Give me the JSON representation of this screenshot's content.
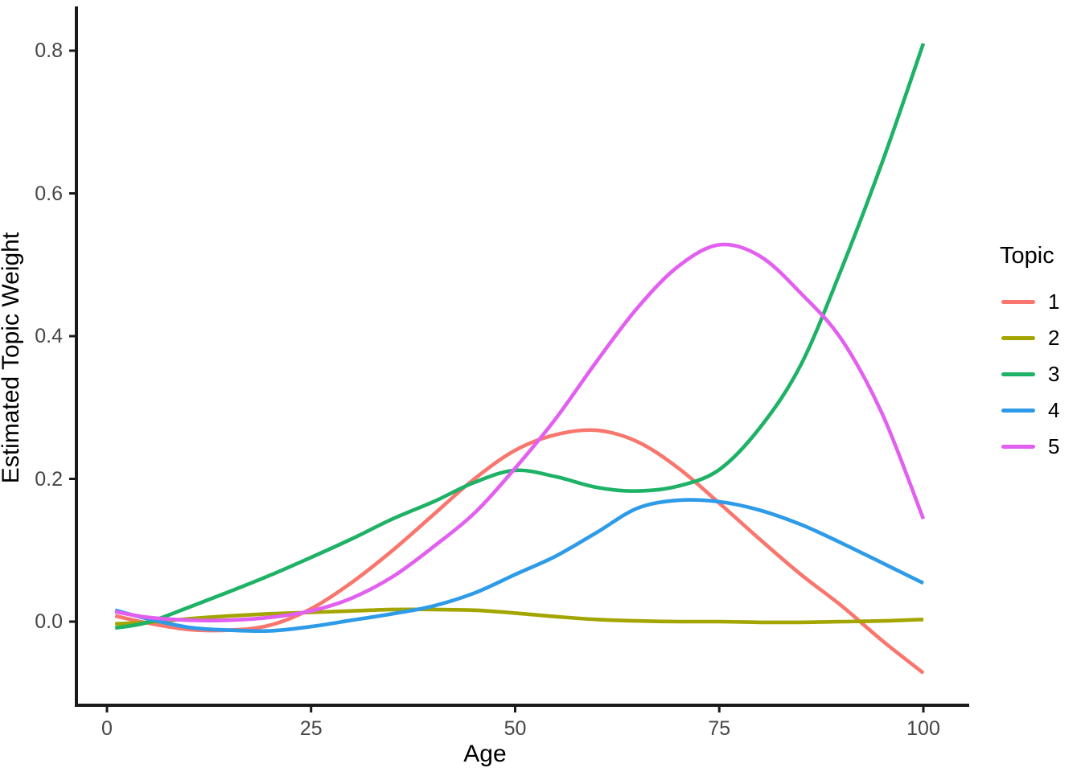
{
  "chart_data": {
    "type": "line",
    "title": "",
    "xlabel": "Age",
    "ylabel": "Estimated Topic Weight",
    "legend_title": "Topic",
    "legend_position": "right",
    "grid": false,
    "background": "#ffffff",
    "axis_color": "#1a1a1a",
    "tick_text_color": "#464646",
    "xlim": [
      -4,
      106
    ],
    "ylim": [
      -0.117,
      0.86
    ],
    "x_ticks": [
      {
        "value": 0,
        "label": "0"
      },
      {
        "value": 25,
        "label": "25"
      },
      {
        "value": 50,
        "label": "50"
      },
      {
        "value": 75,
        "label": "75"
      },
      {
        "value": 100,
        "label": "100"
      }
    ],
    "y_ticks": [
      {
        "value": 0.0,
        "label": "0.0"
      },
      {
        "value": 0.2,
        "label": "0.2"
      },
      {
        "value": 0.4,
        "label": "0.4"
      },
      {
        "value": 0.6,
        "label": "0.6"
      },
      {
        "value": 0.8,
        "label": "0.8"
      }
    ],
    "x": [
      1,
      5,
      10,
      15,
      20,
      25,
      30,
      35,
      40,
      45,
      50,
      55,
      60,
      65,
      70,
      75,
      80,
      85,
      90,
      95,
      100
    ],
    "series": [
      {
        "name": "1",
        "color": "#F8766D",
        "values": [
          0.008,
          -0.002,
          -0.011,
          -0.012,
          -0.005,
          0.018,
          0.055,
          0.1,
          0.15,
          0.2,
          0.24,
          0.262,
          0.268,
          0.252,
          0.215,
          0.166,
          0.115,
          0.066,
          0.022,
          -0.027,
          -0.072
        ]
      },
      {
        "name": "2",
        "color": "#A3A500",
        "values": [
          -0.003,
          -0.001,
          0.004,
          0.008,
          0.011,
          0.013,
          0.015,
          0.017,
          0.017,
          0.016,
          0.012,
          0.007,
          0.003,
          0.001,
          0.0,
          0.0,
          -0.001,
          -0.001,
          0.0,
          0.001,
          0.003
        ]
      },
      {
        "name": "3",
        "color": "#1EB266",
        "values": [
          -0.009,
          -0.001,
          0.02,
          0.042,
          0.065,
          0.09,
          0.116,
          0.144,
          0.168,
          0.195,
          0.212,
          0.203,
          0.188,
          0.183,
          0.19,
          0.213,
          0.272,
          0.36,
          0.495,
          0.645,
          0.81
        ]
      },
      {
        "name": "4",
        "color": "#2E9BE8",
        "values": [
          0.016,
          0.004,
          -0.008,
          -0.012,
          -0.013,
          -0.007,
          0.002,
          0.011,
          0.022,
          0.04,
          0.066,
          0.092,
          0.125,
          0.159,
          0.17,
          0.168,
          0.156,
          0.136,
          0.11,
          0.082,
          0.054
        ]
      },
      {
        "name": "5",
        "color": "#E25FF0",
        "values": [
          0.014,
          0.006,
          0.002,
          0.002,
          0.006,
          0.015,
          0.033,
          0.063,
          0.105,
          0.152,
          0.215,
          0.285,
          0.365,
          0.44,
          0.498,
          0.528,
          0.512,
          0.46,
          0.395,
          0.29,
          0.144
        ]
      }
    ]
  }
}
